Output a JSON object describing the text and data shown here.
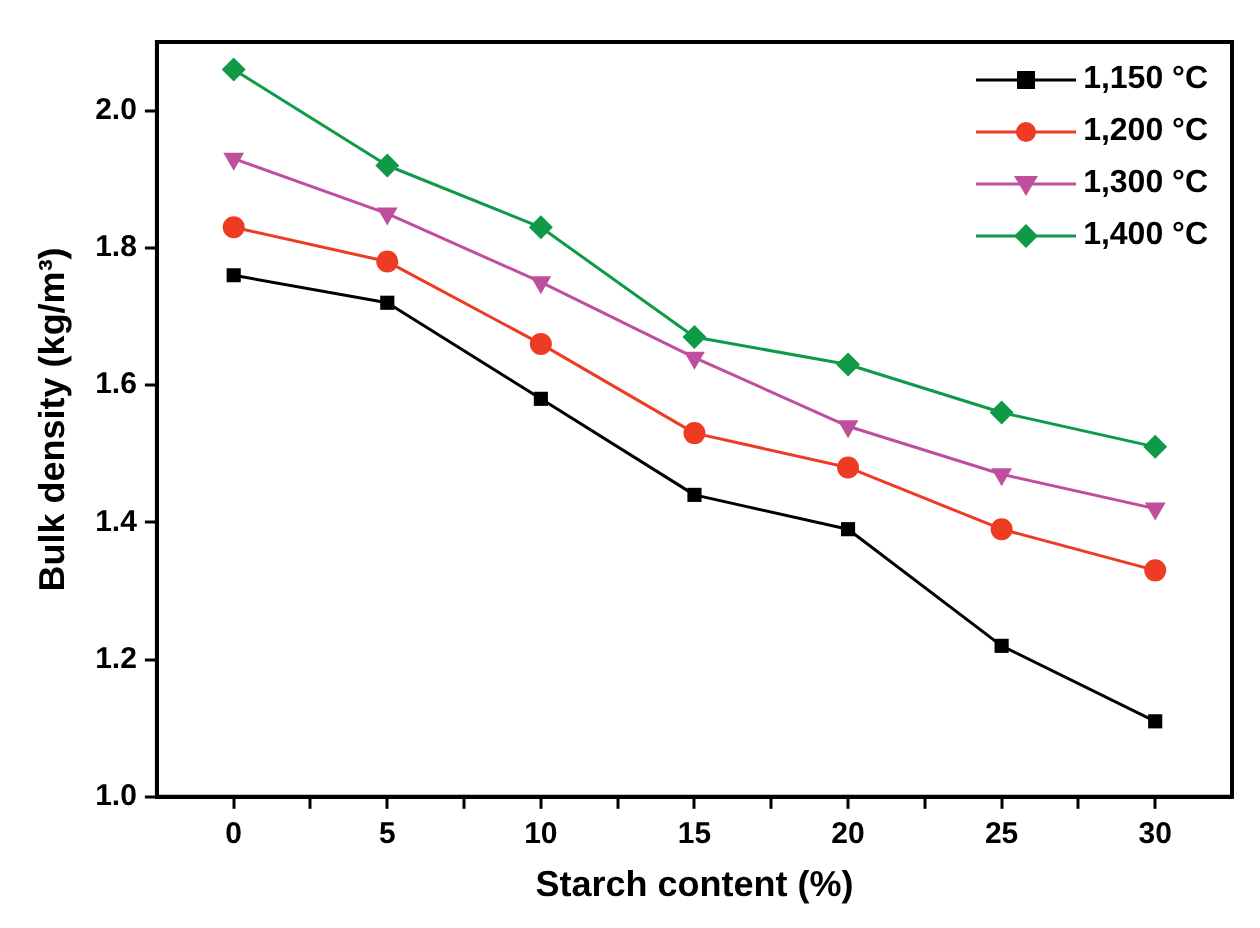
{
  "chart_data": {
    "type": "line",
    "xlabel": "Starch content (%)",
    "ylabel": "Bulk density (kg/m³)",
    "x": [
      0,
      5,
      10,
      15,
      20,
      25,
      30
    ],
    "xlim": [
      -2.5,
      32.5
    ],
    "xticks": [
      0,
      {
        "value": 2.5,
        "label": null
      },
      5,
      {
        "value": 7.5,
        "label": null
      },
      10,
      {
        "value": 12.5,
        "label": null
      },
      15,
      {
        "value": 17.5,
        "label": null
      },
      20,
      {
        "value": 22.5,
        "label": null
      },
      25,
      {
        "value": 27.5,
        "label": null
      },
      30
    ],
    "ylim": [
      1.0,
      2.1
    ],
    "yticks": [
      {
        "value": 1.0,
        "label": "1.0"
      },
      1.2,
      1.4,
      1.6,
      1.8,
      {
        "value": 2.0,
        "label": "2.0"
      }
    ],
    "grid": false,
    "legend": "top right",
    "series": [
      {
        "name": "1,150 °C",
        "color": "#000000",
        "marker": "square",
        "values": [
          1.76,
          1.72,
          1.58,
          1.44,
          1.39,
          1.22,
          1.11
        ]
      },
      {
        "name": "1,200 °C",
        "color": "#ee3b24",
        "marker": "circle",
        "values": [
          1.83,
          1.78,
          1.66,
          1.53,
          1.48,
          1.39,
          1.33
        ]
      },
      {
        "name": "1,300 °C",
        "color": "#bf4f9e",
        "marker": "triangle",
        "values": [
          1.93,
          1.85,
          1.75,
          1.64,
          1.54,
          1.47,
          1.42
        ]
      },
      {
        "name": "1,400 °C",
        "color": "#0f9a48",
        "marker": "diamond",
        "values": [
          2.06,
          1.92,
          1.83,
          1.67,
          1.63,
          1.56,
          1.51
        ]
      }
    ]
  }
}
